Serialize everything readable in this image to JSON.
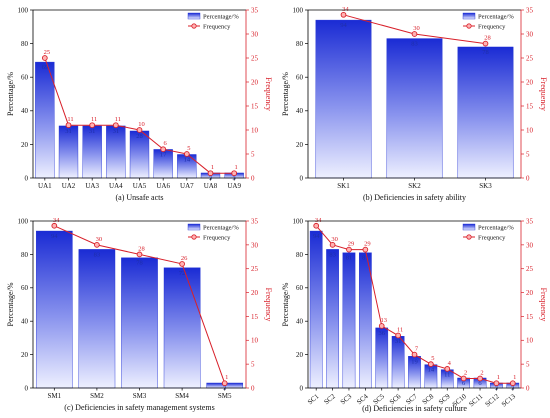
{
  "figure": {
    "legend": {
      "bar_label": "Percentage/%",
      "line_label": "Frequency",
      "placement": "top-right"
    },
    "axis_titles": {
      "left": "Percentage/%",
      "right": "Frequency"
    },
    "colors": {
      "bar_top": "#1a2bd4",
      "bar_bottom": "#eef0ff",
      "line": "#d8202a",
      "bar_label": "#1f2fa8"
    }
  },
  "chart_data": [
    {
      "type": "bar",
      "title": "(a) Unsafe acts",
      "categories": [
        "UA1",
        "UA2",
        "UA3",
        "UA4",
        "UA5",
        "UA6",
        "UA7",
        "UA8",
        "UA9"
      ],
      "series": [
        {
          "name": "Percentage/%",
          "axis": "left",
          "type": "bar",
          "values": [
            69,
            31,
            31,
            31,
            28,
            17,
            14,
            3,
            3
          ]
        },
        {
          "name": "Frequency",
          "axis": "right",
          "type": "line",
          "values": [
            25,
            11,
            11,
            11,
            10,
            6,
            5,
            1,
            1
          ]
        }
      ],
      "ylim_left": [
        0,
        100
      ],
      "yticks_left": [
        0,
        20,
        40,
        60,
        80,
        100
      ],
      "ylim_right": [
        0,
        35
      ],
      "yticks_right": [
        0,
        5,
        10,
        15,
        20,
        25,
        30,
        35
      ],
      "ylabel": "Percentage/%",
      "y2label": "Frequency",
      "xlabel": "",
      "legend": "top-right"
    },
    {
      "type": "bar",
      "title": "(b) Deficiencies in safety ability",
      "categories": [
        "SK1",
        "SK2",
        "SK3"
      ],
      "series": [
        {
          "name": "Percentage/%",
          "axis": "left",
          "type": "bar",
          "values": [
            94,
            83,
            78
          ]
        },
        {
          "name": "Frequency",
          "axis": "right",
          "type": "line",
          "values": [
            34,
            30,
            28
          ]
        }
      ],
      "ylim_left": [
        0,
        100
      ],
      "yticks_left": [
        0,
        20,
        40,
        60,
        80,
        100
      ],
      "ylim_right": [
        0,
        35
      ],
      "yticks_right": [
        0,
        5,
        10,
        15,
        20,
        25,
        30,
        35
      ],
      "ylabel": "Percentage/%",
      "y2label": "Frequency",
      "xlabel": "",
      "legend": "top-right"
    },
    {
      "type": "bar",
      "title": "(c) Deficiencies in safety management systems",
      "categories": [
        "SM1",
        "SM2",
        "SM3",
        "SM4",
        "SM5"
      ],
      "series": [
        {
          "name": "Percentage/%",
          "axis": "left",
          "type": "bar",
          "values": [
            94,
            83,
            78,
            72,
            3
          ]
        },
        {
          "name": "Frequency",
          "axis": "right",
          "type": "line",
          "values": [
            34,
            30,
            28,
            26,
            1
          ]
        }
      ],
      "ylim_left": [
        0,
        100
      ],
      "yticks_left": [
        0,
        20,
        40,
        60,
        80,
        100
      ],
      "ylim_right": [
        0,
        35
      ],
      "yticks_right": [
        0,
        5,
        10,
        15,
        20,
        25,
        30,
        35
      ],
      "ylabel": "Percentage/%",
      "y2label": "Frequency",
      "xlabel": "",
      "legend": "top-right"
    },
    {
      "type": "bar",
      "title": "(d) Deficiencies in safety culture",
      "categories": [
        "SC1",
        "SC2",
        "SC3",
        "SC4",
        "SC5",
        "SC6",
        "SC7",
        "SC8",
        "SC9",
        "SC10",
        "SC11",
        "SC12",
        "SC13"
      ],
      "series": [
        {
          "name": "Percentage/%",
          "axis": "left",
          "type": "bar",
          "values": [
            94,
            83,
            81,
            81,
            36,
            31,
            19,
            14,
            11,
            6,
            6,
            3,
            3
          ]
        },
        {
          "name": "Frequency",
          "axis": "right",
          "type": "line",
          "values": [
            34,
            30,
            29,
            29,
            13,
            11,
            7,
            5,
            4,
            2,
            2,
            1,
            1
          ]
        }
      ],
      "ylim_left": [
        0,
        100
      ],
      "yticks_left": [
        0,
        20,
        40,
        60,
        80,
        100
      ],
      "ylim_right": [
        0,
        35
      ],
      "yticks_right": [
        0,
        5,
        10,
        15,
        20,
        25,
        30,
        35
      ],
      "ylabel": "Percentage/%",
      "y2label": "Frequency",
      "xlabel": "",
      "legend": "top-right",
      "rotated_categories": true
    }
  ]
}
